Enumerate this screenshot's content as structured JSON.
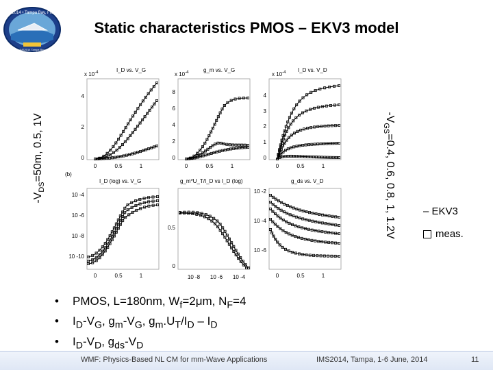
{
  "logo": {
    "top_text": "IMS2014 • Tampa Bay, Florida",
    "bottom_text": "IMS2014 Tampa Bay"
  },
  "title": "Static characteristics PMOS – EKV3 model",
  "left_label_parts": [
    "-V",
    "DS",
    "=50m, 0.5, 1V"
  ],
  "right_label_parts": [
    "-V",
    "GS",
    "=0.4, 0.6, 0.8, 1, 1.2V"
  ],
  "legend": {
    "ekv3": "– EKV3",
    "meas": "meas."
  },
  "figure": {
    "panel_b_label": "(b)",
    "row1": {
      "p1": {
        "title": "I_D vs. V_G",
        "exp": "x 10",
        "exp_pow": "-4",
        "yticks": [
          "4",
          "2",
          "0"
        ],
        "xticks": [
          "0",
          "0.5",
          "1"
        ]
      },
      "p2": {
        "title": "g_m vs. V_G",
        "exp": "x 10",
        "exp_pow": "-4",
        "yticks": [
          "8",
          "6",
          "4",
          "2",
          "0"
        ],
        "xticks": [
          "0",
          "0.5",
          "1"
        ]
      },
      "p3": {
        "title": "I_D vs. V_D",
        "exp": "x 10",
        "exp_pow": "-4",
        "yticks": [
          "4",
          "3",
          "2",
          "1",
          "0"
        ],
        "xticks": [
          "0",
          "0.5",
          "1"
        ]
      }
    },
    "row2": {
      "p1": {
        "title": "I_D (log) vs. V_G",
        "yticks": [
          "10 -4",
          "10 -6",
          "10 -8",
          "10 -10"
        ],
        "xticks": [
          "0",
          "0.5",
          "1"
        ]
      },
      "p2": {
        "title": "g_m*U_T/I_D vs I_D (log)",
        "yticks": [
          "0.5",
          "0"
        ],
        "xticks": [
          "10 -8",
          "10 -6",
          "10 -4"
        ]
      },
      "p3": {
        "title": "g_ds vs. V_D",
        "yticks": [
          "10 -2",
          "10 -4",
          "10 -6"
        ],
        "xticks": [
          "0",
          "0.5",
          "1"
        ]
      }
    }
  },
  "bullets": [
    [
      "PMOS, L=180nm, W",
      "f",
      "=2μm, N",
      "F",
      "=4"
    ],
    [
      "I",
      "D",
      "-V",
      "G",
      ", g",
      "m",
      "-V",
      "G",
      ", g",
      "m",
      ".U",
      "T",
      "/I",
      "D",
      " – I",
      "D"
    ],
    [
      "I",
      "D",
      "-V",
      "D",
      ", g",
      "ds",
      "-V",
      "D"
    ]
  ],
  "footer": {
    "left": "WMF: Physics-Based NL CM for mm-Wave Applications",
    "center": "IMS2014, Tampa, 1-6 June, 2014",
    "page": "11"
  }
}
